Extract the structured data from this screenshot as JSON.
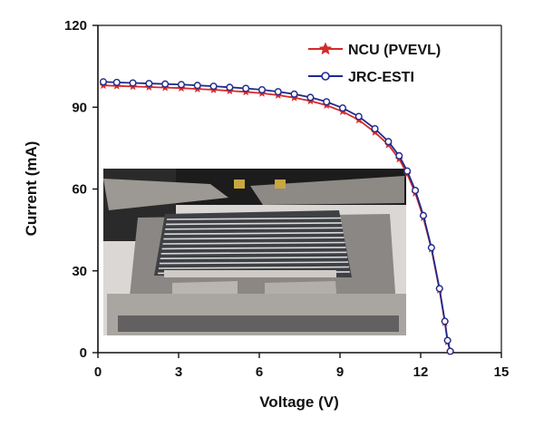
{
  "chart_data": {
    "type": "line",
    "xlabel": "Voltage (V)",
    "ylabel": "Current (mA)",
    "xlim": [
      0,
      15
    ],
    "ylim": [
      0,
      120
    ],
    "x_ticks": [
      "0",
      "3",
      "6",
      "9",
      "12",
      "15"
    ],
    "y_ticks": [
      "0",
      "30",
      "60",
      "90",
      "120"
    ],
    "legend_position": "top-right",
    "series": [
      {
        "name": "NCU (PVEVL)",
        "color": "#d42a2a",
        "marker": "star",
        "x": [
          0.2,
          0.7,
          1.3,
          1.9,
          2.5,
          3.1,
          3.7,
          4.3,
          4.9,
          5.5,
          6.1,
          6.7,
          7.3,
          7.9,
          8.5,
          9.1,
          9.7,
          10.3,
          10.8,
          11.2,
          11.5,
          11.8,
          12.1,
          12.4,
          12.7,
          12.9,
          13.0,
          13.1
        ],
        "y": [
          98.0,
          97.8,
          97.6,
          97.4,
          97.2,
          97.0,
          96.7,
          96.4,
          96.0,
          95.6,
          95.1,
          94.4,
          93.5,
          92.3,
          90.7,
          88.4,
          85.3,
          80.8,
          76.2,
          71.0,
          65.5,
          58.5,
          49.5,
          38.0,
          23.0,
          11.0,
          4.0,
          0.5
        ]
      },
      {
        "name": "JRC-ESTI",
        "color": "#1e2a8c",
        "marker": "circle",
        "x": [
          0.2,
          0.7,
          1.3,
          1.9,
          2.5,
          3.1,
          3.7,
          4.3,
          4.9,
          5.5,
          6.1,
          6.7,
          7.3,
          7.9,
          8.5,
          9.1,
          9.7,
          10.3,
          10.8,
          11.2,
          11.5,
          11.8,
          12.1,
          12.4,
          12.7,
          12.9,
          13.0,
          13.1
        ],
        "y": [
          99.3,
          99.1,
          98.9,
          98.7,
          98.5,
          98.3,
          98.0,
          97.7,
          97.3,
          96.9,
          96.4,
          95.7,
          94.8,
          93.6,
          92.0,
          89.7,
          86.6,
          82.1,
          77.4,
          72.2,
          66.6,
          59.5,
          50.3,
          38.5,
          23.5,
          11.5,
          4.5,
          0.5
        ]
      }
    ]
  },
  "inset": {
    "kind": "photo",
    "subject": "solar panel module with clamps"
  }
}
